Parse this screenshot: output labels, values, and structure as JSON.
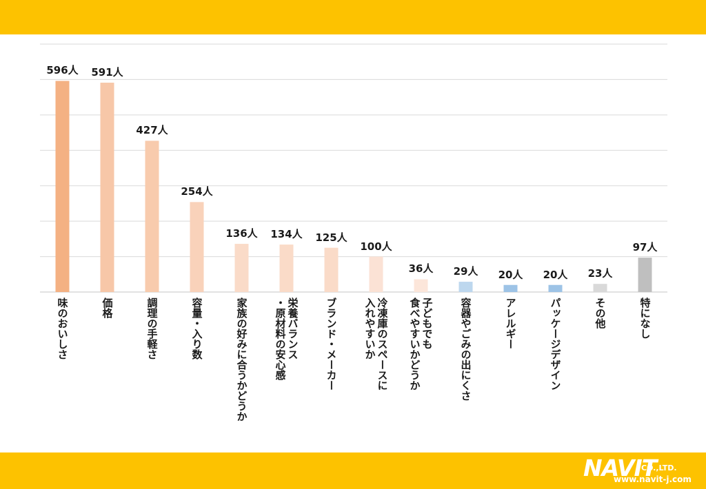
{
  "chart_data": {
    "type": "bar",
    "ylim": [
      0,
      700
    ],
    "grid": true,
    "categories": [
      "味のおいしさ",
      "価格",
      "調理の手軽さ",
      "容量・入り数",
      "家族の好みに合うかどうか",
      "栄養バランス\n・原材料の安心感",
      "ブランド・メーカー",
      "冷凍庫のスペースに\n入れやすいか",
      "子どもでも\n食べやすいかどうか",
      "容器やごみの出にくさ",
      "アレルギー",
      "パッケージデザイン",
      "その他",
      "特になし"
    ],
    "values": [
      596,
      591,
      427,
      254,
      136,
      134,
      125,
      100,
      36,
      29,
      20,
      20,
      23,
      97
    ],
    "value_labels": [
      "596人",
      "591人",
      "427人",
      "254人",
      "136人",
      "134人",
      "125人",
      "100人",
      "36人",
      "29人",
      "20人",
      "20人",
      "23人",
      "97人"
    ],
    "colors": [
      "#F4B183",
      "#F7C7A8",
      "#F8CBAD",
      "#F9D2BA",
      "#FADBC8",
      "#FADBC8",
      "#FADBC8",
      "#FBE2D5",
      "#FCE6DA",
      "#BDD7EE",
      "#9DC3E6",
      "#9DC3E6",
      "#D9D9D9",
      "#BFBFBF"
    ]
  },
  "logo": {
    "word": "NAVIT",
    "company": "CO.,LTD.",
    "url": "www.navit-j.com"
  },
  "theme": {
    "band_color": "#FDC200",
    "grid_color": "#D9D9D9"
  }
}
